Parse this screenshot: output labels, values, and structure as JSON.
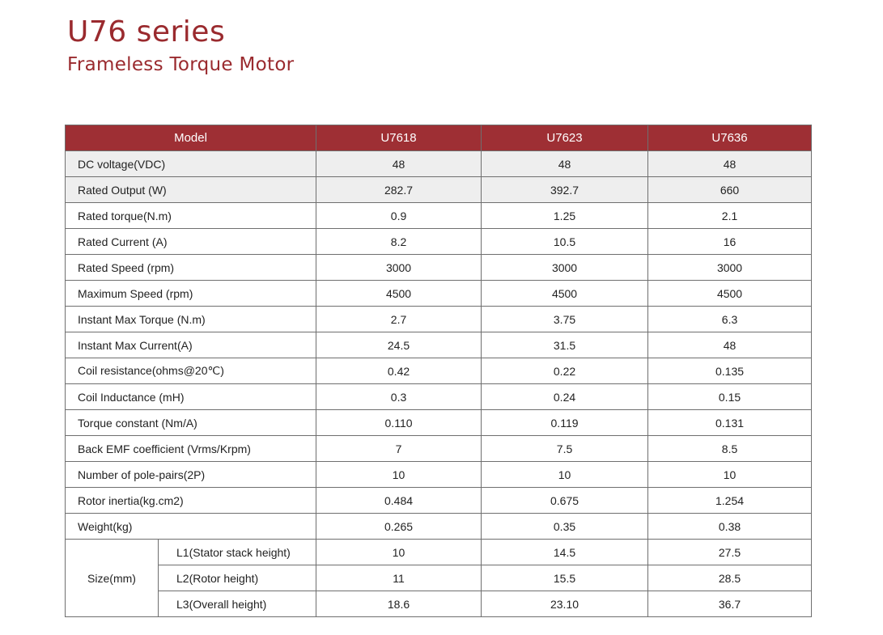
{
  "header": {
    "title": "U76 series",
    "subtitle": "Frameless Torque Motor"
  },
  "table": {
    "model_label": "Model",
    "models": [
      "U7618",
      "U7623",
      "U7636"
    ],
    "rows": [
      {
        "label": "DC voltage(VDC)",
        "values": [
          "48",
          "48",
          "48"
        ]
      },
      {
        "label": "Rated Output (W)",
        "values": [
          "282.7",
          "392.7",
          "660"
        ]
      },
      {
        "label": "Rated torque(N.m)",
        "values": [
          "0.9",
          "1.25",
          "2.1"
        ]
      },
      {
        "label": "Rated Current (A)",
        "values": [
          "8.2",
          "10.5",
          "16"
        ]
      },
      {
        "label": "Rated Speed (rpm)",
        "values": [
          "3000",
          "3000",
          "3000"
        ]
      },
      {
        "label": "Maximum Speed (rpm)",
        "values": [
          "4500",
          "4500",
          "4500"
        ]
      },
      {
        "label": "Instant Max Torque (N.m)",
        "values": [
          "2.7",
          "3.75",
          "6.3"
        ]
      },
      {
        "label": "Instant Max Current(A)",
        "values": [
          "24.5",
          "31.5",
          "48"
        ]
      },
      {
        "label": "Coil resistance(ohms@20℃)",
        "values": [
          "0.42",
          "0.22",
          "0.135"
        ]
      },
      {
        "label": "Coil Inductance (mH)",
        "values": [
          "0.3",
          "0.24",
          "0.15"
        ]
      },
      {
        "label": "Torque constant (Nm/A)",
        "values": [
          "0.110",
          "0.119",
          "0.131"
        ]
      },
      {
        "label": "Back EMF coefficient (Vrms/Krpm)",
        "values": [
          "7",
          "7.5",
          "8.5"
        ]
      },
      {
        "label": "Number of pole-pairs(2P)",
        "values": [
          "10",
          "10",
          "10"
        ]
      },
      {
        "label": "Rotor inertia(kg.cm2)",
        "values": [
          "0.484",
          "0.675",
          "1.254"
        ]
      },
      {
        "label": "Weight(kg)",
        "values": [
          "0.265",
          "0.35",
          "0.38"
        ]
      }
    ],
    "size": {
      "label": "Size(mm)",
      "rows": [
        {
          "label": "L1(Stator stack height)",
          "values": [
            "10",
            "14.5",
            "27.5"
          ]
        },
        {
          "label": "L2(Rotor height)",
          "values": [
            "11",
            "15.5",
            "28.5"
          ]
        },
        {
          "label": "L3(Overall height)",
          "values": [
            "18.6",
            "23.10",
            "36.7"
          ]
        }
      ]
    }
  }
}
